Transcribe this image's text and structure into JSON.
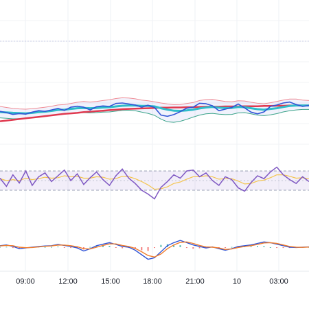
{
  "chart_data": {
    "type": "line",
    "x_ticks": [
      "09:00",
      "12:00",
      "15:00",
      "18:00",
      "21:00",
      "10",
      "03:00"
    ],
    "grid": true,
    "panes": [
      {
        "name": "price",
        "ylim": [
          0,
          100
        ],
        "series": [
          {
            "role": "price",
            "color": "#3054d6",
            "values": [
              46.6,
              46.1,
              45.4,
              45.7,
              45.5,
              46.3,
              46.9,
              46.6,
              47.2,
              47.8,
              47.0,
              48.3,
              48.7,
              48.3,
              47.2,
              48.5,
              48.8,
              48.6,
              49.8,
              50.0,
              49.6,
              49.2,
              48.3,
              49.1,
              48.2,
              45.1,
              44.6,
              45.3,
              46.5,
              47.9,
              48.3,
              49.9,
              49.7,
              48.9,
              46.9,
              47.5,
              48.2,
              49.6,
              48.0,
              46.3,
              45.6,
              46.4,
              48.6,
              49.2,
              50.0,
              50.4,
              49.4,
              48.6,
              49.0
            ]
          },
          {
            "role": "moving-average-fast",
            "color": "#2fbcc9",
            "values": [
              46.3,
              46.2,
              46.0,
              45.9,
              45.8,
              46.0,
              46.3,
              46.5,
              46.8,
              47.2,
              47.3,
              47.6,
              47.9,
              48.0,
              47.9,
              48.0,
              48.2,
              48.3,
              48.6,
              48.9,
              49.0,
              49.0,
              48.8,
              48.8,
              48.6,
              47.9,
              47.3,
              46.9,
              46.8,
              47.0,
              47.3,
              47.8,
              48.2,
              48.4,
              48.1,
              48.0,
              48.0,
              48.4,
              48.3,
              47.9,
              47.5,
              47.3,
              47.6,
              47.9,
              48.4,
              48.8,
              49.0,
              49.0,
              49.0
            ]
          },
          {
            "role": "moving-average-slow",
            "color": "#e0394f",
            "values": [
              42.6,
              42.9,
              43.2,
              43.5,
              43.8,
              44.1,
              44.4,
              44.7,
              45.0,
              45.3,
              45.6,
              45.8,
              46.0,
              46.3,
              46.5,
              46.7,
              46.9,
              47.1,
              47.3,
              47.5,
              47.6,
              47.7,
              47.8,
              47.9,
              48.0,
              48.1,
              48.1,
              48.2,
              48.2,
              48.3,
              48.3,
              48.4,
              48.5,
              48.5,
              48.5,
              48.6,
              48.6,
              48.6,
              48.7,
              48.7,
              48.7,
              48.8,
              48.8,
              48.9,
              48.9,
              49.0,
              49.0,
              49.0,
              49.0
            ]
          },
          {
            "role": "band-upper",
            "color": "#f08a93",
            "values": [
              48.6,
              48.2,
              47.8,
              47.6,
              47.5,
              47.7,
              48.0,
              48.3,
              48.7,
              49.2,
              49.4,
              49.8,
              50.3,
              50.6,
              50.4,
              50.6,
              51.0,
              51.3,
              51.8,
              52.1,
              52.0,
              51.7,
              51.2,
              50.9,
              50.5,
              50.0,
              49.6,
              49.3,
              49.4,
              49.8,
              50.2,
              51.0,
              51.4,
              51.5,
              51.0,
              50.6,
              50.5,
              50.9,
              50.8,
              50.3,
              49.9,
              49.7,
              50.1,
              50.6,
              51.2,
              51.6,
              51.6,
              51.2,
              51.0
            ]
          },
          {
            "role": "band-lower",
            "color": "#3aa389",
            "values": [
              44.0,
              43.8,
              43.6,
              43.7,
              43.8,
              44.1,
              44.4,
              44.7,
              45.0,
              45.4,
              45.5,
              45.7,
              46.0,
              46.1,
              46.0,
              46.1,
              46.3,
              46.4,
              46.7,
              47.0,
              47.1,
              46.9,
              46.3,
              45.8,
              45.0,
              43.5,
              42.4,
              42.2,
              42.6,
              43.4,
              44.3,
              45.1,
              45.6,
              45.8,
              45.5,
              45.3,
              45.4,
              46.0,
              46.1,
              45.6,
              45.1,
              44.9,
              45.2,
              45.7,
              46.4,
              46.9,
              47.2,
              47.4,
              47.4
            ]
          }
        ]
      },
      {
        "name": "oscillator",
        "ylim": [
          0,
          100
        ],
        "levels": [
          70,
          30
        ],
        "series": [
          {
            "role": "oscillator",
            "color": "#7e57c2",
            "values": [
              55,
              38,
              62,
              45,
              70,
              40,
              58,
              66,
              48,
              60,
              72,
              50,
              64,
              42,
              56,
              68,
              52,
              40,
              60,
              74,
              55,
              44,
              30,
              22,
              12,
              36,
              48,
              62,
              55,
              70,
              72,
              58,
              66,
              50,
              40,
              58,
              52,
              35,
              28,
              46,
              60,
              54,
              68,
              78,
              62,
              52,
              44,
              58,
              48
            ]
          },
          {
            "role": "oscillator-signal",
            "color": "#f4c54e",
            "values": [
              54,
              50,
              52,
              50,
              55,
              52,
              54,
              57,
              55,
              56,
              60,
              58,
              59,
              55,
              55,
              58,
              57,
              53,
              54,
              59,
              58,
              54,
              48,
              41,
              32,
              33,
              37,
              44,
              47,
              53,
              58,
              58,
              60,
              58,
              53,
              54,
              54,
              49,
              43,
              44,
              49,
              51,
              56,
              62,
              62,
              59,
              55,
              56,
              54
            ]
          }
        ]
      },
      {
        "name": "macd",
        "ylim": [
          -1,
          1
        ],
        "series": [
          {
            "role": "macd",
            "color": "#3054d6",
            "values": [
              0.1,
              0.15,
              0.05,
              -0.1,
              -0.05,
              0.0,
              0.05,
              0.08,
              0.1,
              0.18,
              0.12,
              0.05,
              -0.05,
              -0.25,
              -0.1,
              0.1,
              0.2,
              0.3,
              0.18,
              0.05,
              0.0,
              -0.2,
              -0.5,
              -0.8,
              -0.7,
              -0.3,
              0.1,
              0.3,
              0.45,
              0.3,
              0.15,
              0.05,
              -0.05,
              0.02,
              -0.1,
              -0.2,
              -0.1,
              0.05,
              0.1,
              0.15,
              0.25,
              0.35,
              0.3,
              0.2,
              0.1,
              0.0,
              -0.02,
              0.0,
              0.02
            ]
          },
          {
            "role": "macd-signal",
            "color": "#f07c2c",
            "values": [
              0.08,
              0.12,
              0.1,
              0.0,
              -0.03,
              -0.02,
              0.02,
              0.06,
              0.08,
              0.14,
              0.14,
              0.1,
              0.03,
              -0.1,
              -0.12,
              0.0,
              0.12,
              0.22,
              0.22,
              0.12,
              0.05,
              -0.08,
              -0.3,
              -0.55,
              -0.65,
              -0.45,
              -0.1,
              0.15,
              0.32,
              0.35,
              0.25,
              0.12,
              0.02,
              0.0,
              -0.05,
              -0.15,
              -0.12,
              -0.02,
              0.05,
              0.1,
              0.18,
              0.28,
              0.3,
              0.25,
              0.15,
              0.05,
              0.0,
              -0.01,
              0.01
            ]
          },
          {
            "role": "histogram",
            "color_up": "#26a69a",
            "color_down": "#ef5350",
            "values": [
              0.02,
              0.03,
              -0.05,
              -0.1,
              -0.02,
              0.02,
              0.03,
              0.02,
              0.02,
              0.04,
              -0.02,
              -0.05,
              -0.08,
              -0.15,
              0.02,
              0.1,
              0.08,
              0.08,
              -0.04,
              -0.07,
              -0.05,
              -0.12,
              -0.2,
              -0.25,
              -0.05,
              0.15,
              0.2,
              0.15,
              0.13,
              -0.05,
              -0.1,
              -0.07,
              -0.07,
              0.02,
              -0.05,
              -0.05,
              0.02,
              0.07,
              0.05,
              0.05,
              0.07,
              0.07,
              0.0,
              -0.05,
              -0.05,
              -0.05,
              -0.02,
              0.01,
              0.01
            ]
          }
        ]
      }
    ]
  }
}
